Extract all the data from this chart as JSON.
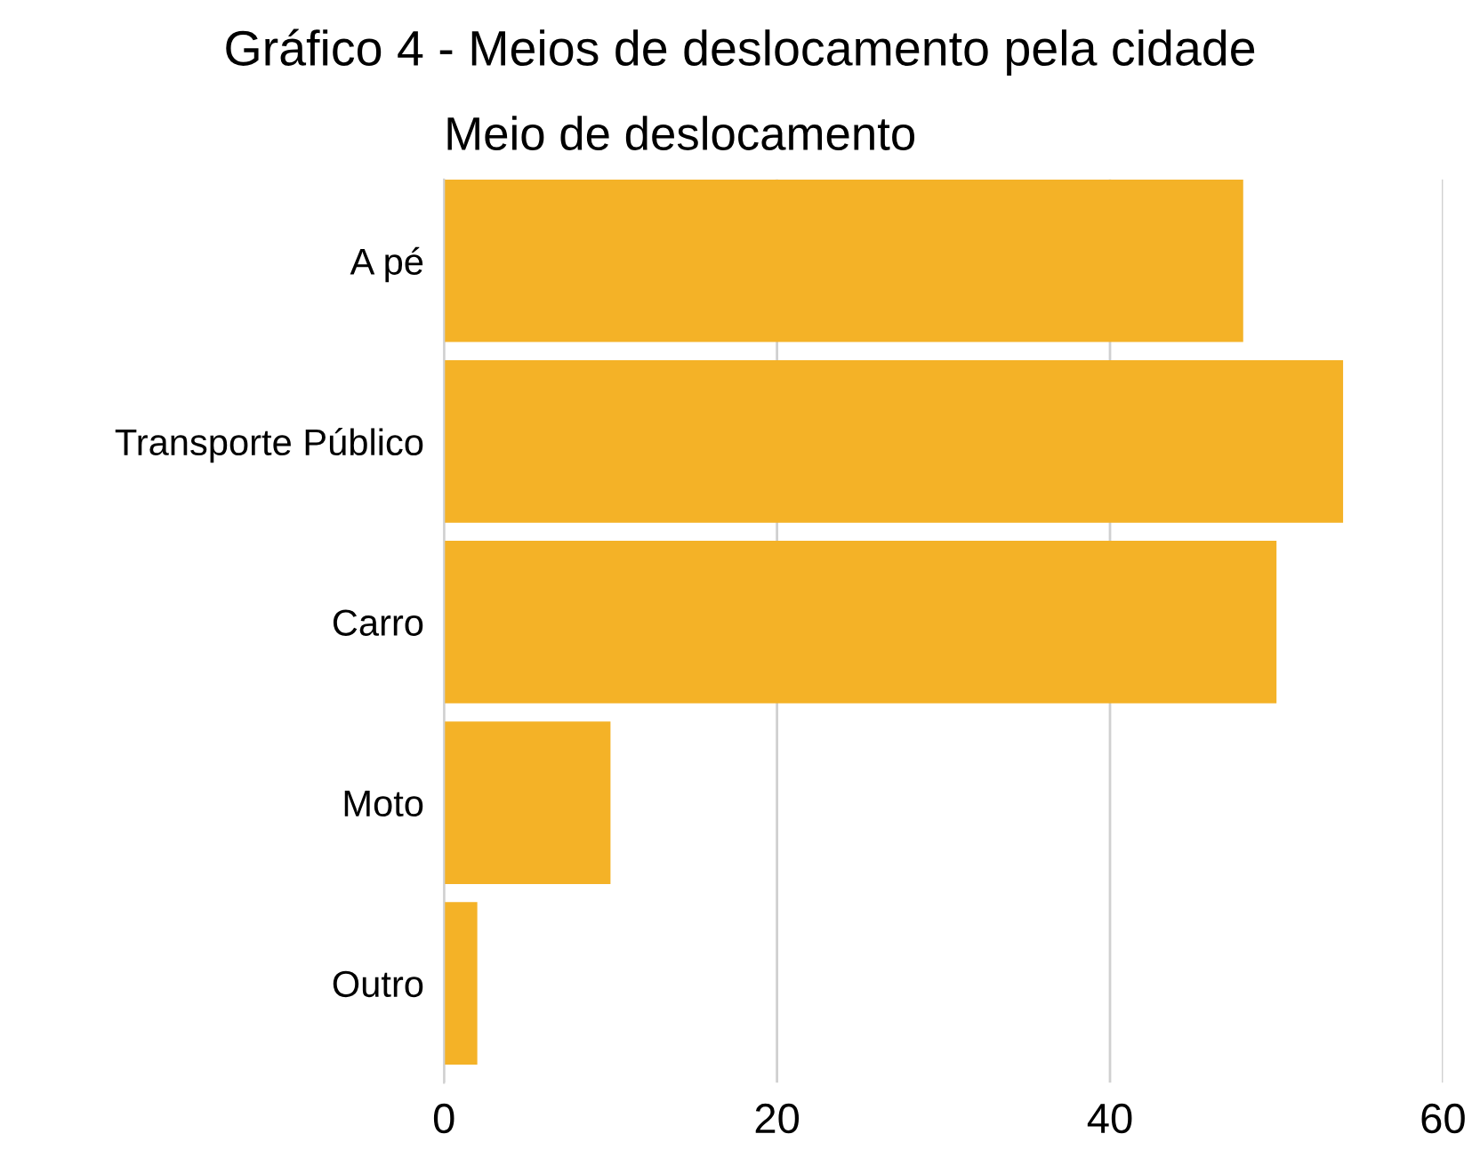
{
  "chart_data": {
    "type": "bar",
    "orientation": "horizontal",
    "title": "Gráfico 4 - Meios de deslocamento pela cidade",
    "subtitle": "Meio de deslocamento",
    "categories": [
      "A pé",
      "Transporte Público",
      "Carro",
      "Moto",
      "Outro"
    ],
    "values": [
      48,
      54,
      50,
      10,
      2
    ],
    "color": "#f4b227",
    "xlim": [
      0,
      60
    ],
    "xticks": [
      0,
      20,
      40,
      60
    ],
    "grid": "x",
    "legend": false
  }
}
